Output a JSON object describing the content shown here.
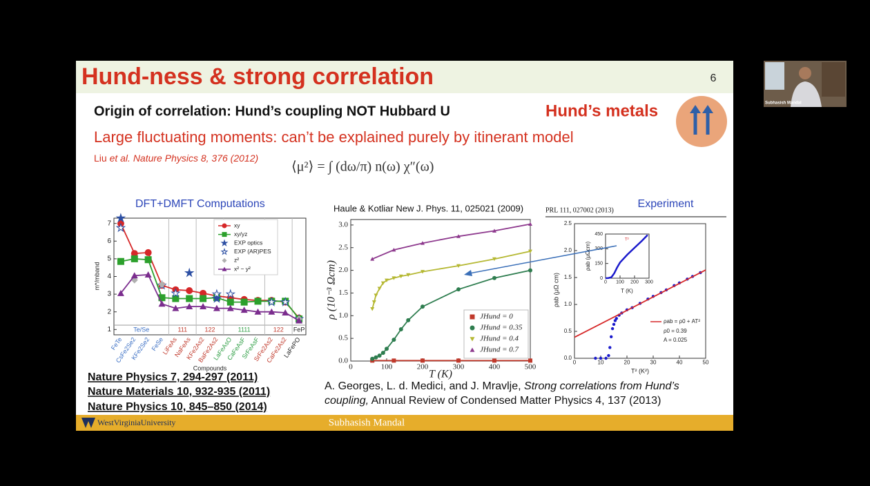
{
  "slide": {
    "title": "Hund-ness & strong correlation",
    "page_number": 6,
    "subtitle": "Origin of correlation: Hund’s coupling NOT Hubbard U",
    "badge": "Hund’s metals",
    "statement": "Large fluctuating moments: can’t be explained purely by itinerant model",
    "citation_author": "Liu",
    "citation_rest": "et al. Nature Physics 8, 376 (2012)",
    "formula": "⟨μ²⟩ = ∫ (dω/π) n(ω) χ″(ω)",
    "references": [
      "Nature Physics 7, 294-297 (2011)",
      "Nature Materials 10, 932-935 (2011)",
      "Nature Physics 10, 845–850 (2014)"
    ],
    "review_line1_authors": "A. Georges, L. d. Medici, and J. Mravlje,",
    "review_line1_title": "Strong correlations from Hund’s",
    "review_line2_title": "coupling,",
    "review_line2_rest": "Annual Review of Condensed Matter Physics 4, 137 (2013)",
    "footer_logo": "WestVirginiaUniversity",
    "footer_name": "Subhasish Mandal"
  },
  "webcam": {
    "name": "Subhasish Mandal"
  },
  "chart_data": [
    {
      "type": "line",
      "title": "DFT+DMFT Computations",
      "x_label": "Compounds",
      "y_label": "m*/mband",
      "categories": [
        "FeTe",
        "CsFe2Se2",
        "KFe2Se2",
        "FeSe",
        "LiFeAs",
        "NaFeAs",
        "KFe2As2",
        "BaFe2As2",
        "LaFeAsO",
        "CaFeAsF",
        "SrFeAsF",
        "SrFe2As2",
        "CaFe2As2",
        "LaFePO"
      ],
      "groups": [
        {
          "label": "Te/Se",
          "color": "#3b6fc4"
        },
        {
          "label": "111",
          "color": "#c0392b"
        },
        {
          "label": "122",
          "color": "#c0392b"
        },
        {
          "label": "1111",
          "color": "#2e9e44"
        },
        {
          "label": "122",
          "color": "#c0392b"
        },
        {
          "label": "FeP",
          "color": "#222222"
        }
      ],
      "ylim": [
        0.7,
        7.3
      ],
      "yticks": [
        1,
        2,
        3,
        4,
        5,
        6,
        7
      ],
      "series": [
        {
          "name": "xy",
          "color": "#d62728",
          "marker": "circle",
          "line": true,
          "values": [
            7.0,
            5.3,
            5.35,
            3.5,
            3.25,
            3.2,
            3.05,
            2.9,
            2.8,
            2.7,
            2.65,
            2.65,
            2.55,
            1.65
          ]
        },
        {
          "name": "xy/yz",
          "color": "#2ca02c",
          "marker": "square",
          "line": true,
          "values": [
            4.85,
            5.0,
            4.95,
            2.8,
            2.75,
            2.75,
            2.75,
            2.8,
            2.55,
            2.55,
            2.6,
            2.6,
            2.6,
            1.6
          ]
        },
        {
          "name": "EXP optics",
          "color": "#2c4fa3",
          "marker": "star",
          "line": false,
          "values": [
            7.3,
            null,
            null,
            null,
            null,
            4.2,
            null,
            2.75,
            null,
            null,
            null,
            null,
            null,
            null
          ]
        },
        {
          "name": "EXP (AR)PES",
          "color": "#2c4fa3",
          "marker": "star-open",
          "line": false,
          "values": [
            6.75,
            null,
            null,
            3.5,
            3.05,
            null,
            null,
            3.0,
            3.0,
            null,
            null,
            2.55,
            2.55,
            1.6
          ]
        },
        {
          "name": "z²",
          "color": "#b0b0b0",
          "marker": "diamond",
          "line": false,
          "values": [
            null,
            3.8,
            null,
            3.55,
            null,
            null,
            null,
            null,
            null,
            null,
            null,
            null,
            null,
            1.6
          ]
        },
        {
          "name": "x² − y²",
          "color": "#7b2d8e",
          "marker": "triangle",
          "line": true,
          "values": [
            3.05,
            4.05,
            4.1,
            2.45,
            2.2,
            2.3,
            2.3,
            2.2,
            2.2,
            2.1,
            2.0,
            2.0,
            1.95,
            1.5
          ]
        }
      ]
    },
    {
      "type": "line",
      "title": "Haule & Kotliar New J. Phys. 11, 025021 (2009)",
      "x_label": "T (K)",
      "y_label": "ρ (10⁻³ Ωcm)",
      "xlim": [
        0,
        500
      ],
      "xticks": [
        0,
        100,
        200,
        300,
        400,
        500
      ],
      "ylim": [
        0,
        3.12
      ],
      "yticks": [
        {
          "value": 0,
          "label": "0.0"
        },
        0.5,
        {
          "value": 1,
          "label": "1.0"
        },
        1.5,
        {
          "value": 2,
          "label": "2.0"
        },
        2.5,
        {
          "value": 3,
          "label": "3.0"
        }
      ],
      "series": [
        {
          "name": "JHund = 0",
          "color": "#c0392b",
          "marker": "square",
          "line": true,
          "x": [
            60,
            120,
            200,
            300,
            400,
            500
          ],
          "values": [
            0.01,
            0.01,
            0.01,
            0.01,
            0.01,
            0.01
          ]
        },
        {
          "name": "JHund = 0.35",
          "color": "#2e7d4f",
          "marker": "circle",
          "line": true,
          "x": [
            60,
            70,
            80,
            90,
            100,
            120,
            140,
            160,
            200,
            300,
            400,
            500
          ],
          "values": [
            0.05,
            0.08,
            0.12,
            0.18,
            0.27,
            0.47,
            0.7,
            0.9,
            1.2,
            1.58,
            1.83,
            2.0
          ]
        },
        {
          "name": "JHund = 0.4",
          "color": "#b5b832",
          "marker": "triangle-down",
          "line": true,
          "x": [
            60,
            65,
            70,
            80,
            90,
            100,
            120,
            140,
            160,
            200,
            300,
            400,
            500
          ],
          "values": [
            1.15,
            1.3,
            1.45,
            1.6,
            1.72,
            1.78,
            1.83,
            1.87,
            1.9,
            1.97,
            2.1,
            2.25,
            2.42
          ]
        },
        {
          "name": "JHund = 0.7",
          "color": "#8e3a8e",
          "marker": "triangle",
          "line": true,
          "x": [
            60,
            120,
            200,
            300,
            400,
            500
          ],
          "values": [
            2.25,
            2.45,
            2.6,
            2.75,
            2.87,
            3.02
          ]
        }
      ]
    },
    {
      "type": "scatter",
      "title": "Experiment",
      "header": "PRL 111, 027002 (2013)",
      "x_label": "T² (K²)",
      "y_label": "ρab (μΩ cm)",
      "xlim": [
        0,
        50
      ],
      "xticks": [
        0,
        10,
        20,
        30,
        40,
        50
      ],
      "ylim": [
        0,
        2.5
      ],
      "yticks": [
        {
          "value": 0,
          "label": "0.0"
        },
        0.5,
        {
          "value": 1,
          "label": "1.0"
        },
        1.5,
        {
          "value": 2,
          "label": "2.0"
        },
        2.5
      ],
      "series": [
        {
          "color": "#1a1acc",
          "marker": "circle",
          "line": false,
          "x": [
            8,
            10,
            12,
            13,
            13.5,
            14,
            14.5,
            15,
            15.5,
            16,
            17,
            18,
            20,
            22,
            25,
            28,
            30,
            33,
            35,
            38,
            40,
            43,
            45,
            48
          ],
          "values": [
            0,
            0,
            0,
            0.05,
            0.2,
            0.4,
            0.55,
            0.63,
            0.7,
            0.74,
            0.8,
            0.84,
            0.9,
            0.94,
            1.02,
            1.1,
            1.15,
            1.22,
            1.27,
            1.35,
            1.4,
            1.47,
            1.52,
            1.59
          ]
        },
        {
          "name": "ρab = ρ0 + AT²",
          "color": "#d62728",
          "marker": "none",
          "line": true,
          "x": [
            0,
            50
          ],
          "values": [
            0.39,
            1.64
          ]
        }
      ],
      "annotations": [
        "ρ0 = 0.39",
        "A = 0.025"
      ],
      "inset": {
        "x_label": "T (K)",
        "y_label": "ρab (μΩcm)",
        "annotation": "T²",
        "xlim": [
          0,
          300
        ],
        "xticks": [
          0,
          100,
          200,
          300
        ],
        "ylim": [
          0,
          450
        ],
        "yticks": [
          0,
          150,
          300,
          450
        ],
        "series": [
          {
            "color": "#1a1acc",
            "x": [
              0,
              20,
              40,
              60,
              80,
              100,
              150,
              200,
              250,
              290
            ],
            "values": [
              0,
              2,
              10,
              50,
              110,
              160,
              240,
              310,
              380,
              440
            ]
          }
        ]
      }
    }
  ]
}
